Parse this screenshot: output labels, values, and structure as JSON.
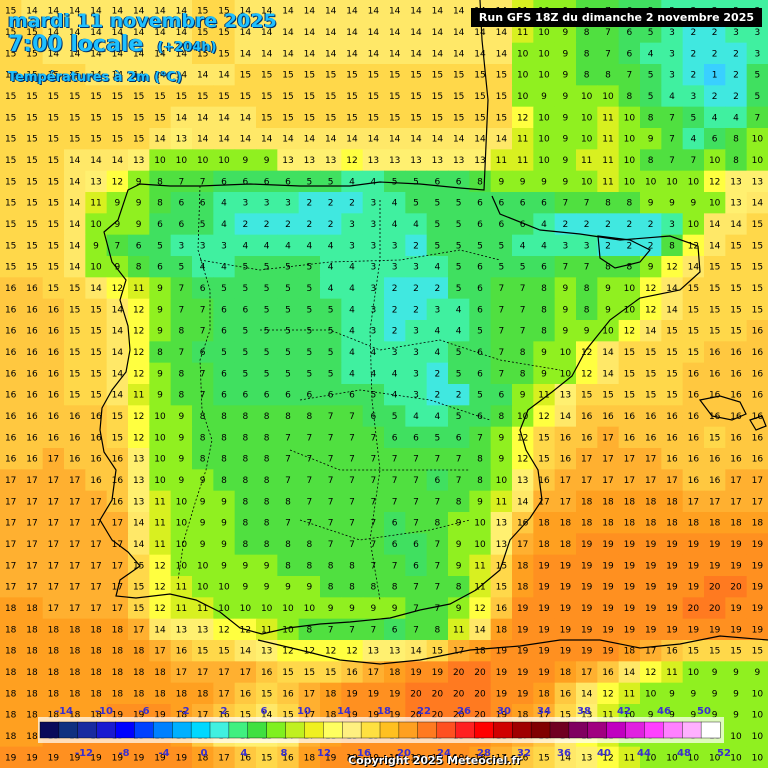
{
  "header": {
    "date_line": "mardi 11 novembre 2025",
    "time_line": "7:00 locale",
    "lead_time": "(+204h)",
    "field": "Températures à 2m (°C)",
    "run_info": "Run GFS 18Z du dimanche 2 novembre 2025"
  },
  "legend": {
    "top_ticks": [
      "-14",
      "-10",
      "-6",
      "-2",
      "2",
      "6",
      "10",
      "14",
      "18",
      "22",
      "26",
      "30",
      "34",
      "38",
      "42",
      "46",
      "50"
    ],
    "bottom_ticks": [
      "-12",
      "-8",
      "-4",
      "0",
      "4",
      "8",
      "12",
      "16",
      "20",
      "24",
      "28",
      "32",
      "36",
      "40",
      "44",
      "48",
      "52"
    ],
    "colors": [
      "#0a0a5a",
      "#103080",
      "#1a2aa0",
      "#1a1ad0",
      "#0000ff",
      "#0040ff",
      "#0080ff",
      "#00b0ff",
      "#00d8ff",
      "#40f0e0",
      "#40f080",
      "#40e040",
      "#80f020",
      "#c0f020",
      "#f0f020",
      "#ffff60",
      "#fff080",
      "#ffe040",
      "#ffc020",
      "#ffa020",
      "#ff7a20",
      "#ff5020",
      "#ff2020",
      "#ff0000",
      "#d00000",
      "#a00000",
      "#800000",
      "#700020",
      "#800060",
      "#a00080",
      "#c000c0",
      "#e020e0",
      "#ff40ff",
      "#ff80ff",
      "#ffb0ff",
      "#ffffff"
    ]
  },
  "copyright": "Copyright 2025 Meteociel.fr",
  "temperature_grid": [
    [
      15,
      14,
      14,
      14,
      14,
      14,
      14,
      14,
      14,
      15,
      15,
      14,
      14,
      14,
      14,
      14,
      14,
      14,
      14,
      14,
      14,
      14,
      14,
      14,
      11,
      10,
      9,
      8,
      7,
      6,
      5,
      3,
      3,
      3,
      3,
      3
    ],
    [
      15,
      15,
      14,
      14,
      14,
      14,
      14,
      14,
      14,
      15,
      15,
      14,
      14,
      14,
      14,
      14,
      14,
      14,
      14,
      14,
      14,
      14,
      14,
      14,
      11,
      10,
      9,
      8,
      7,
      6,
      5,
      3,
      2,
      2,
      3,
      3
    ],
    [
      15,
      15,
      14,
      14,
      14,
      14,
      14,
      14,
      14,
      15,
      15,
      14,
      14,
      14,
      14,
      14,
      14,
      14,
      14,
      14,
      14,
      14,
      14,
      14,
      10,
      10,
      9,
      8,
      7,
      6,
      4,
      3,
      2,
      2,
      2,
      3
    ],
    [
      15,
      15,
      15,
      15,
      14,
      14,
      14,
      14,
      14,
      14,
      14,
      15,
      15,
      15,
      15,
      15,
      15,
      15,
      15,
      15,
      15,
      15,
      15,
      15,
      10,
      10,
      9,
      8,
      8,
      7,
      5,
      3,
      2,
      1,
      2,
      5
    ],
    [
      15,
      15,
      15,
      15,
      15,
      15,
      15,
      15,
      15,
      15,
      15,
      15,
      15,
      15,
      15,
      15,
      15,
      15,
      15,
      15,
      15,
      15,
      15,
      15,
      10,
      9,
      9,
      10,
      10,
      8,
      5,
      4,
      3,
      2,
      2,
      5
    ],
    [
      15,
      15,
      15,
      15,
      15,
      15,
      15,
      15,
      14,
      14,
      14,
      14,
      15,
      15,
      15,
      15,
      15,
      15,
      15,
      15,
      15,
      15,
      15,
      15,
      12,
      10,
      9,
      10,
      11,
      10,
      8,
      7,
      5,
      4,
      4,
      7
    ],
    [
      15,
      15,
      15,
      15,
      15,
      15,
      15,
      14,
      13,
      14,
      14,
      14,
      14,
      14,
      14,
      14,
      14,
      14,
      14,
      14,
      14,
      14,
      14,
      14,
      11,
      10,
      9,
      10,
      11,
      10,
      9,
      7,
      4,
      6,
      8,
      10
    ],
    [
      15,
      15,
      15,
      14,
      14,
      14,
      13,
      10,
      10,
      10,
      10,
      9,
      9,
      13,
      13,
      13,
      12,
      13,
      13,
      13,
      13,
      13,
      13,
      11,
      11,
      10,
      9,
      11,
      11,
      10,
      8,
      7,
      7,
      10,
      8,
      10
    ],
    [
      15,
      15,
      15,
      14,
      13,
      12,
      9,
      8,
      7,
      7,
      6,
      6,
      6,
      6,
      5,
      5,
      4,
      4,
      5,
      5,
      6,
      6,
      8,
      9,
      9,
      9,
      9,
      10,
      11,
      10,
      10,
      10,
      10,
      12,
      13,
      13
    ],
    [
      15,
      15,
      15,
      14,
      11,
      9,
      9,
      8,
      6,
      6,
      4,
      3,
      3,
      3,
      2,
      2,
      2,
      3,
      4,
      5,
      5,
      5,
      6,
      6,
      6,
      6,
      7,
      7,
      8,
      8,
      9,
      9,
      9,
      10,
      13,
      14
    ],
    [
      15,
      15,
      15,
      14,
      10,
      9,
      9,
      6,
      6,
      5,
      4,
      2,
      2,
      2,
      2,
      2,
      3,
      3,
      4,
      4,
      5,
      5,
      6,
      6,
      6,
      4,
      2,
      2,
      2,
      2,
      2,
      3,
      10,
      14,
      14,
      15
    ],
    [
      15,
      15,
      15,
      14,
      9,
      7,
      6,
      5,
      3,
      3,
      3,
      4,
      4,
      4,
      4,
      4,
      3,
      3,
      3,
      2,
      5,
      5,
      5,
      5,
      4,
      4,
      3,
      3,
      2,
      2,
      2,
      8,
      12,
      14,
      15,
      15
    ],
    [
      15,
      15,
      15,
      14,
      10,
      9,
      8,
      6,
      5,
      4,
      4,
      5,
      5,
      5,
      5,
      4,
      4,
      3,
      3,
      3,
      4,
      5,
      6,
      5,
      5,
      6,
      7,
      7,
      8,
      8,
      9,
      12,
      14,
      15,
      15,
      15
    ],
    [
      16,
      16,
      15,
      15,
      14,
      12,
      11,
      9,
      7,
      6,
      5,
      5,
      5,
      5,
      5,
      4,
      4,
      3,
      2,
      2,
      2,
      5,
      6,
      7,
      7,
      8,
      9,
      8,
      9,
      10,
      12,
      14,
      15,
      15,
      15,
      15
    ],
    [
      16,
      16,
      16,
      15,
      15,
      14,
      12,
      9,
      7,
      7,
      6,
      6,
      5,
      5,
      5,
      5,
      4,
      3,
      2,
      2,
      3,
      4,
      6,
      7,
      7,
      8,
      9,
      8,
      9,
      10,
      12,
      14,
      15,
      15,
      15,
      15
    ],
    [
      16,
      16,
      16,
      15,
      15,
      14,
      12,
      9,
      8,
      7,
      6,
      5,
      5,
      5,
      5,
      5,
      4,
      3,
      2,
      3,
      4,
      4,
      5,
      7,
      7,
      8,
      9,
      9,
      10,
      12,
      14,
      15,
      15,
      15,
      15,
      16
    ],
    [
      16,
      16,
      16,
      15,
      15,
      14,
      12,
      8,
      7,
      6,
      5,
      5,
      5,
      5,
      5,
      5,
      4,
      4,
      3,
      3,
      4,
      5,
      6,
      7,
      8,
      9,
      10,
      12,
      14,
      15,
      15,
      15,
      15,
      16,
      16,
      16
    ],
    [
      16,
      16,
      16,
      15,
      15,
      14,
      12,
      9,
      8,
      7,
      6,
      5,
      5,
      5,
      5,
      5,
      4,
      4,
      4,
      3,
      2,
      5,
      6,
      7,
      8,
      9,
      10,
      12,
      14,
      15,
      15,
      15,
      16,
      16,
      16,
      16
    ],
    [
      16,
      16,
      16,
      15,
      15,
      14,
      11,
      9,
      8,
      7,
      6,
      6,
      6,
      6,
      6,
      6,
      6,
      5,
      4,
      3,
      2,
      2,
      5,
      6,
      9,
      11,
      13,
      15,
      15,
      15,
      15,
      15,
      16,
      16,
      16,
      16
    ],
    [
      16,
      16,
      16,
      16,
      16,
      15,
      12,
      10,
      9,
      8,
      8,
      8,
      8,
      8,
      8,
      7,
      7,
      6,
      5,
      4,
      4,
      5,
      6,
      8,
      10,
      12,
      14,
      16,
      16,
      16,
      16,
      16,
      16,
      16,
      16,
      16
    ],
    [
      16,
      16,
      16,
      16,
      16,
      15,
      12,
      10,
      9,
      8,
      8,
      8,
      8,
      7,
      7,
      7,
      7,
      7,
      6,
      6,
      5,
      6,
      7,
      9,
      12,
      15,
      16,
      16,
      17,
      16,
      16,
      16,
      16,
      15,
      16,
      16
    ],
    [
      16,
      16,
      17,
      16,
      16,
      16,
      13,
      10,
      9,
      8,
      8,
      8,
      8,
      7,
      7,
      7,
      7,
      7,
      7,
      7,
      7,
      7,
      8,
      9,
      12,
      15,
      16,
      17,
      17,
      17,
      17,
      16,
      16,
      16,
      16,
      16
    ],
    [
      17,
      17,
      17,
      17,
      16,
      16,
      13,
      10,
      9,
      9,
      8,
      8,
      8,
      7,
      7,
      7,
      7,
      7,
      7,
      7,
      6,
      7,
      8,
      10,
      13,
      16,
      17,
      17,
      17,
      17,
      17,
      17,
      16,
      16,
      17,
      17
    ],
    [
      17,
      17,
      17,
      17,
      17,
      16,
      13,
      11,
      10,
      9,
      9,
      8,
      8,
      8,
      7,
      7,
      7,
      7,
      7,
      7,
      7,
      8,
      9,
      11,
      14,
      17,
      17,
      18,
      18,
      18,
      18,
      18,
      17,
      17,
      17,
      17
    ],
    [
      17,
      17,
      17,
      17,
      17,
      17,
      14,
      11,
      10,
      9,
      9,
      8,
      8,
      7,
      7,
      7,
      7,
      7,
      6,
      7,
      8,
      9,
      10,
      13,
      16,
      18,
      18,
      18,
      18,
      18,
      18,
      18,
      18,
      18,
      18,
      18
    ],
    [
      17,
      17,
      17,
      17,
      17,
      17,
      14,
      11,
      10,
      9,
      9,
      8,
      8,
      8,
      8,
      7,
      7,
      7,
      6,
      6,
      7,
      9,
      10,
      13,
      17,
      18,
      18,
      19,
      19,
      19,
      19,
      19,
      19,
      19,
      19,
      19
    ],
    [
      17,
      17,
      17,
      17,
      17,
      17,
      15,
      12,
      10,
      10,
      9,
      9,
      9,
      8,
      8,
      8,
      8,
      7,
      7,
      6,
      7,
      9,
      11,
      15,
      18,
      19,
      19,
      19,
      19,
      19,
      19,
      19,
      19,
      19,
      19,
      19
    ],
    [
      17,
      17,
      17,
      17,
      17,
      17,
      15,
      12,
      11,
      10,
      10,
      9,
      9,
      9,
      9,
      8,
      8,
      8,
      8,
      7,
      7,
      8,
      11,
      15,
      18,
      19,
      19,
      19,
      19,
      19,
      19,
      19,
      19,
      20,
      20,
      19
    ],
    [
      18,
      18,
      17,
      17,
      17,
      17,
      15,
      12,
      11,
      11,
      10,
      10,
      10,
      10,
      10,
      9,
      9,
      9,
      9,
      7,
      7,
      9,
      12,
      16,
      19,
      19,
      19,
      19,
      19,
      19,
      19,
      19,
      20,
      20,
      19,
      19
    ],
    [
      18,
      18,
      18,
      18,
      18,
      18,
      17,
      14,
      13,
      13,
      12,
      12,
      11,
      10,
      8,
      7,
      7,
      7,
      6,
      7,
      8,
      11,
      14,
      18,
      19,
      19,
      19,
      19,
      19,
      19,
      19,
      19,
      19,
      19,
      19,
      19
    ],
    [
      18,
      18,
      18,
      18,
      18,
      18,
      18,
      17,
      16,
      15,
      15,
      14,
      13,
      12,
      12,
      12,
      12,
      13,
      13,
      14,
      15,
      17,
      18,
      19,
      19,
      19,
      19,
      19,
      19,
      18,
      17,
      16,
      15,
      15,
      15,
      15
    ],
    [
      18,
      18,
      18,
      18,
      18,
      18,
      18,
      18,
      17,
      17,
      17,
      17,
      16,
      15,
      15,
      15,
      16,
      17,
      18,
      19,
      19,
      20,
      20,
      19,
      19,
      19,
      18,
      17,
      16,
      14,
      12,
      11,
      10,
      9,
      9,
      9
    ],
    [
      18,
      18,
      18,
      18,
      18,
      18,
      18,
      18,
      18,
      18,
      17,
      16,
      15,
      16,
      17,
      18,
      19,
      19,
      19,
      20,
      20,
      20,
      20,
      19,
      19,
      18,
      16,
      14,
      12,
      11,
      10,
      9,
      9,
      9,
      9,
      10
    ],
    [
      18,
      18,
      18,
      18,
      18,
      19,
      19,
      19,
      18,
      17,
      16,
      15,
      14,
      15,
      17,
      18,
      19,
      19,
      19,
      20,
      20,
      20,
      20,
      19,
      18,
      17,
      15,
      13,
      11,
      10,
      9,
      9,
      9,
      9,
      9,
      10
    ],
    [
      18,
      18,
      19,
      19,
      19,
      19,
      19,
      19,
      18,
      16,
      14,
      13,
      13,
      14,
      17,
      18,
      19,
      19,
      19,
      19,
      19,
      19,
      19,
      18,
      17,
      16,
      14,
      12,
      11,
      10,
      9,
      9,
      9,
      10,
      10,
      10
    ],
    [
      19,
      19,
      19,
      19,
      19,
      19,
      19,
      19,
      19,
      18,
      17,
      16,
      15,
      16,
      18,
      19,
      19,
      19,
      19,
      19,
      19,
      19,
      18,
      17,
      16,
      15,
      14,
      13,
      12,
      11,
      10,
      10,
      10,
      10,
      10,
      10
    ]
  ]
}
